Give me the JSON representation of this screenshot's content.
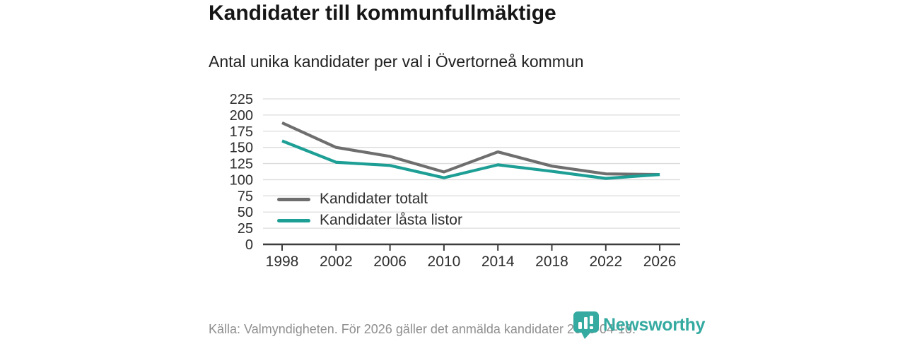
{
  "chart_data": {
    "type": "line",
    "title": "Kandidater till kommunfullmäktige",
    "subtitle": "Antal unika kandidater per val i Övertorneå kommun",
    "x": [
      "1998",
      "2002",
      "2006",
      "2010",
      "2014",
      "2018",
      "2022",
      "2026"
    ],
    "series": [
      {
        "name": "Kandidater totalt",
        "color": "#6e6e6e",
        "values": [
          188,
          150,
          136,
          112,
          143,
          121,
          109,
          108
        ]
      },
      {
        "name": "Kandidater låsta listor",
        "color": "#1d9f96",
        "values": [
          160,
          127,
          122,
          103,
          123,
          113,
          102,
          108
        ]
      }
    ],
    "ylim": [
      0,
      225
    ],
    "ytick_step": 25,
    "grid": true,
    "legend_position": "inside-bottom-left",
    "xlabel": "",
    "ylabel": ""
  },
  "footer": {
    "source": "Källa: Valmyndigheten. För 2026 gäller det anmälda kandidater 2026-04-10.",
    "brand": "Newsworthy"
  },
  "colors": {
    "accent_teal": "#1d9f96",
    "series_gray": "#6e6e6e",
    "logo_teal": "#35aaa1",
    "grid_line": "#dcdcdc",
    "axis_line": "#3c3c3c",
    "tick_text": "#2e2e2e",
    "source_text": "#8f8f8f"
  }
}
